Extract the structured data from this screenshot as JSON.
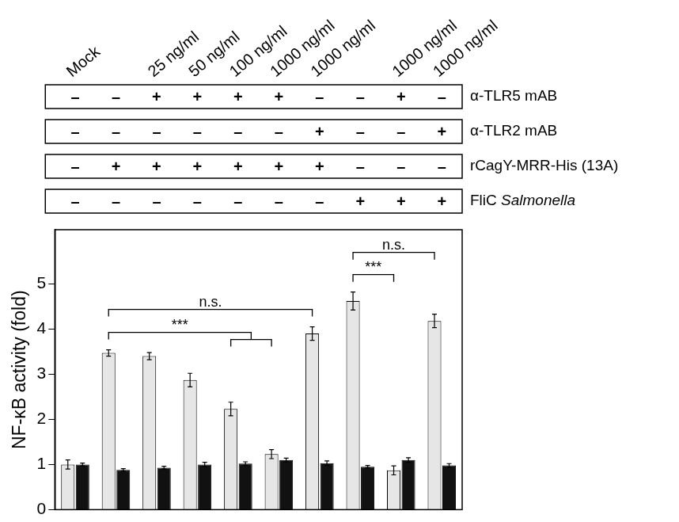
{
  "chart_data": {
    "type": "bar",
    "y_label": "NF-κB activity (fold)",
    "categories": [
      "Mock",
      null,
      "25 ng/ml",
      "50 ng/ml",
      "100 ng/ml",
      "1000 ng/ml",
      "1000 ng/ml",
      null,
      "1000 ng/ml",
      "1000 ng/ml"
    ],
    "series": [
      {
        "color": "#e6e6e6",
        "values": [
          1.0,
          3.47,
          3.4,
          2.87,
          2.23,
          1.23,
          3.9,
          4.62,
          0.87,
          4.18
        ],
        "errors": [
          0.1,
          0.07,
          0.08,
          0.15,
          0.15,
          0.1,
          0.15,
          0.2,
          0.1,
          0.15
        ]
      },
      {
        "color": "#111111",
        "values": [
          1.0,
          0.88,
          0.93,
          1.0,
          1.02,
          1.1,
          1.03,
          0.95,
          1.1,
          0.98
        ],
        "errors": [
          0.03,
          0.03,
          0.03,
          0.05,
          0.04,
          0.04,
          0.05,
          0.03,
          0.05,
          0.04
        ]
      }
    ],
    "conditions": [
      {
        "label": "α-TLR5 mAB",
        "signs": [
          "–",
          "–",
          "+",
          "+",
          "+",
          "+",
          "–",
          "–",
          "+",
          "–"
        ]
      },
      {
        "label": "α-TLR2 mAB",
        "signs": [
          "–",
          "–",
          "–",
          "–",
          "–",
          "–",
          "+",
          "–",
          "–",
          "+"
        ]
      },
      {
        "label": "rCagY-MRR-His (13A)",
        "signs": [
          "–",
          "+",
          "+",
          "+",
          "+",
          "+",
          "+",
          "–",
          "–",
          "–"
        ]
      },
      {
        "label": "FliC Salmonella",
        "signs": [
          "–",
          "–",
          "–",
          "–",
          "–",
          "–",
          "–",
          "+",
          "+",
          "+"
        ]
      }
    ],
    "significance": [
      {
        "from": 1,
        "to": [
          4,
          5
        ],
        "label": "***"
      },
      {
        "from": 1,
        "to": [
          6
        ],
        "label": "n.s."
      },
      {
        "from": 7,
        "to": [
          8
        ],
        "label": "***"
      },
      {
        "from": 7,
        "to": [
          9
        ],
        "label": "n.s."
      }
    ],
    "ylim": [
      0,
      6.2
    ],
    "yticks": [
      0,
      1,
      2,
      3,
      4,
      5
    ],
    "grid": false
  }
}
